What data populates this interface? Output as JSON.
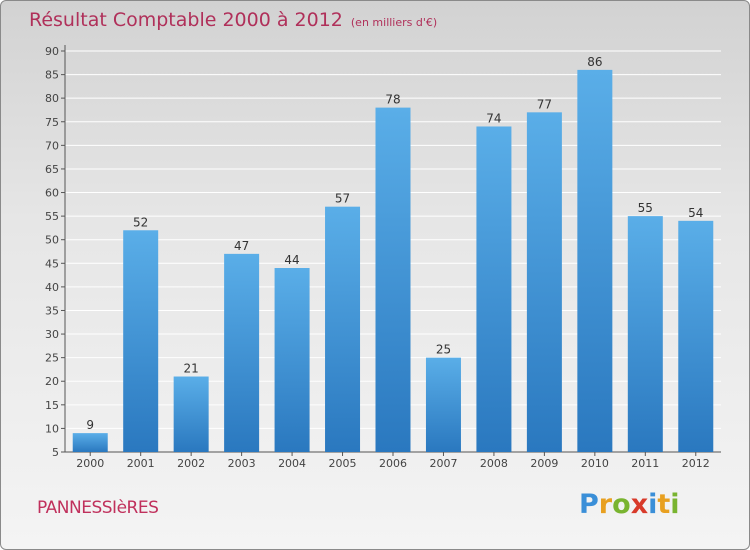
{
  "title": "Résultat Comptable 2000 à 2012",
  "subtitle": "(en milliers d'€)",
  "commune": "PANNESSIèRES",
  "logo": {
    "letters": [
      "P",
      "r",
      "o",
      "x",
      "i",
      "t",
      "i"
    ],
    "colors": [
      "#3a8fd8",
      "#e8a020",
      "#79b430",
      "#d83a2a",
      "#3a8fd8",
      "#e8a020",
      "#79b430"
    ]
  },
  "colors": {
    "bar": "#3f97dd",
    "bar_light": "#5aaee8",
    "bar_dark": "#2a78bf",
    "title": "#b0305a",
    "grid": "#ffffff"
  },
  "chart_data": {
    "type": "bar",
    "categories": [
      "2000",
      "2001",
      "2002",
      "2003",
      "2004",
      "2005",
      "2006",
      "2007",
      "2008",
      "2009",
      "2010",
      "2011",
      "2012"
    ],
    "values": [
      9,
      52,
      21,
      47,
      44,
      57,
      78,
      25,
      74,
      77,
      86,
      55,
      54
    ],
    "ylim": [
      5,
      90
    ],
    "yticks": [
      5,
      10,
      15,
      20,
      25,
      30,
      35,
      40,
      45,
      50,
      55,
      60,
      65,
      70,
      75,
      80,
      85,
      90
    ],
    "grid": true
  }
}
